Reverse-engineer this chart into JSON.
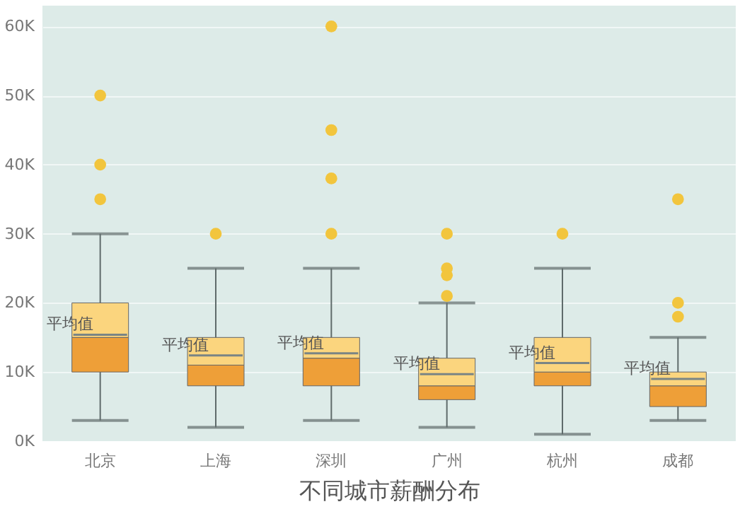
{
  "chart_data": {
    "type": "box",
    "xlabel": "不同城市薪酬分布",
    "categories": [
      "北京",
      "上海",
      "深圳",
      "广州",
      "杭州",
      "成都"
    ],
    "color": "#ee9f38",
    "boxes": [
      {
        "low": 3000,
        "q1": 10000,
        "median": 15000,
        "q3": 20000,
        "high": 30000,
        "mean": 15400,
        "outliers": [
          35000,
          40000,
          50000
        ]
      },
      {
        "low": 2000,
        "q1": 8000,
        "median": 11000,
        "q3": 15000,
        "high": 25000,
        "mean": 12400,
        "outliers": [
          30000
        ]
      },
      {
        "low": 3000,
        "q1": 8000,
        "median": 12000,
        "q3": 15000,
        "high": 25000,
        "mean": 12700,
        "outliers": [
          30000,
          38000,
          45000,
          60000
        ]
      },
      {
        "low": 2000,
        "q1": 6000,
        "median": 8000,
        "q3": 12000,
        "high": 20000,
        "mean": 9700,
        "outliers": [
          21000,
          24000,
          25000,
          30000
        ]
      },
      {
        "low": 1000,
        "q1": 8000,
        "median": 10000,
        "q3": 15000,
        "high": 25000,
        "mean": 11300,
        "outliers": [
          30000
        ]
      },
      {
        "low": 3000,
        "q1": 5000,
        "median": 8000,
        "q3": 10000,
        "high": 15000,
        "mean": 9000,
        "outliers": [
          18000,
          20000,
          35000
        ]
      }
    ],
    "annotations": [
      {
        "text": "平均值",
        "x": "北京",
        "y": 15400
      },
      {
        "text": "平均值",
        "x": "上海",
        "y": 12400
      },
      {
        "text": "平均值",
        "x": "深圳",
        "y": 12700
      },
      {
        "text": "平均值",
        "x": "广州",
        "y": 9700
      },
      {
        "text": "平均值",
        "x": "杭州",
        "y": 11300
      },
      {
        "text": "平均值",
        "x": "成都",
        "y": 9000
      }
    ],
    "ylim": [
      0,
      63000
    ],
    "yticks": [
      {
        "value": 0,
        "label": "0K"
      },
      {
        "value": 10000,
        "label": "10K"
      },
      {
        "value": 20000,
        "label": "20K"
      },
      {
        "value": 30000,
        "label": "30K"
      },
      {
        "value": 40000,
        "label": "40K"
      },
      {
        "value": 50000,
        "label": "50K"
      },
      {
        "value": 60000,
        "label": "60K"
      }
    ],
    "grid": "y"
  }
}
